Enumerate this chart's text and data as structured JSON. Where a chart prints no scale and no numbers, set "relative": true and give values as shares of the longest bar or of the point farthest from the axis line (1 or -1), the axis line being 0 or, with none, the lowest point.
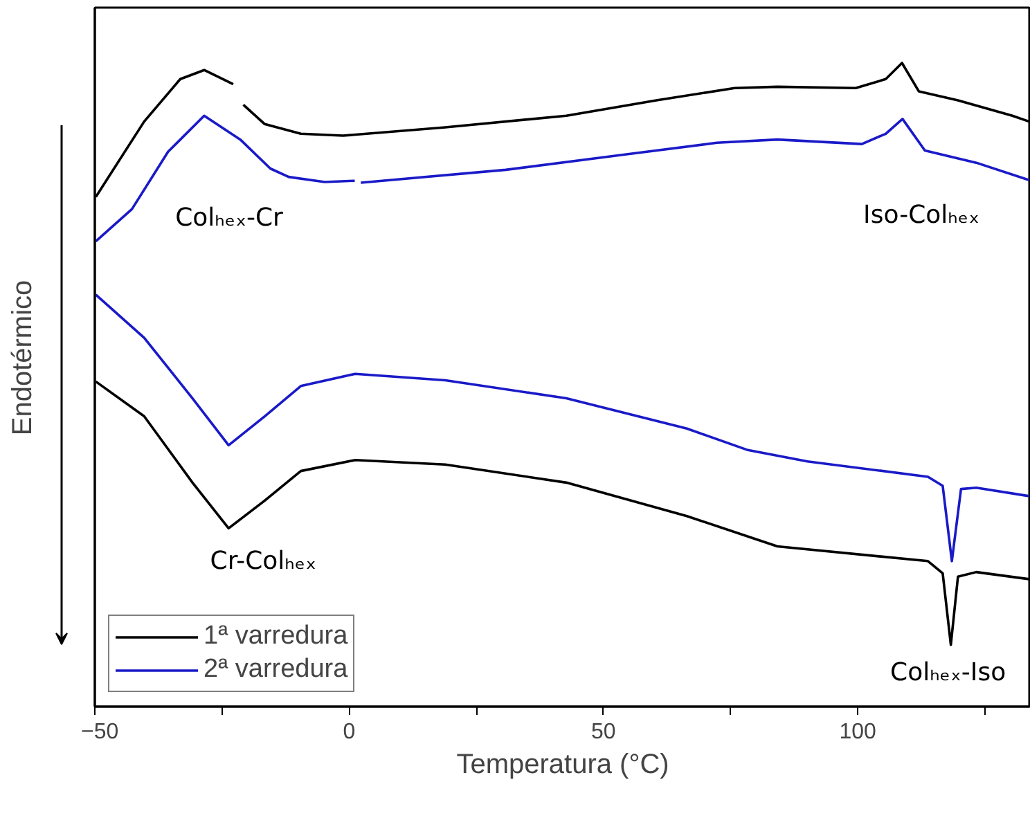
{
  "chart_data": {
    "type": "line",
    "relative": true,
    "xlabel": "Temperatura (°C)",
    "ylabel": "Endotérmico",
    "xlim": [
      -50,
      134
    ],
    "xticks": [
      -50,
      {
        "value": -25,
        "label": null
      },
      0,
      {
        "value": 25,
        "label": null
      },
      50,
      {
        "value": 75,
        "label": null
      },
      100,
      {
        "value": 125,
        "label": null
      }
    ],
    "grid": false,
    "legend": "bottom left",
    "marker": "none",
    "line_style": "solid",
    "series": [
      {
        "name": "1ª varredura",
        "color": "#000000",
        "x": [
          -49.8,
          -40.3,
          -33.2,
          -28.5,
          -22.8,
          -21.8,
          -20.8,
          -16.6,
          -9.5,
          -1.2,
          18.9,
          42.7,
          60.4,
          75.8,
          84.2,
          99.6,
          105.5,
          108.7,
          112.0,
          119.7,
          130.4,
          133.7
        ],
        "values": [
          0.792,
          0.909,
          0.975,
          0.989,
          0.967,
          null,
          0.935,
          0.905,
          0.89,
          0.887,
          0.9,
          0.918,
          0.942,
          0.961,
          0.963,
          0.961,
          0.975,
          1,
          0.956,
          0.942,
          0.918,
          0.909
        ]
      },
      {
        "name": "2ª varredura",
        "color": "#1a1ac8",
        "x": [
          -49.8,
          -42.7,
          -35.6,
          -28.5,
          -21.4,
          -15.5,
          -11.9,
          -4.8,
          1.1,
          1.7,
          2.3,
          30.8,
          54.5,
          72.3,
          84.2,
          100.8,
          105.5,
          108.8,
          113.2,
          123.3,
          133.7
        ],
        "values": [
          0.723,
          0.773,
          0.862,
          0.918,
          0.881,
          0.836,
          0.823,
          0.815,
          0.817,
          null,
          0.814,
          0.834,
          0.858,
          0.876,
          0.881,
          0.874,
          0.89,
          0.913,
          0.864,
          0.845,
          0.818
        ]
      },
      {
        "color": "#1a1ac8",
        "x": [
          -49.8,
          -40.3,
          -30.8,
          -23.7,
          -16.6,
          -9.5,
          1.2,
          18.9,
          42.7,
          66.4,
          78.2,
          90.1,
          113.8,
          116.7,
          118.5,
          120.3,
          123.3,
          133.7
        ],
        "values": [
          0.64,
          0.573,
          0.479,
          0.406,
          0.451,
          0.498,
          0.517,
          0.507,
          0.479,
          0.432,
          0.399,
          0.381,
          0.357,
          0.343,
          0.226,
          0.338,
          0.34,
          0.327
        ]
      },
      {
        "color": "#000000",
        "x": [
          -49.8,
          -40.3,
          -30.8,
          -23.7,
          -16.6,
          -9.5,
          1.2,
          18.9,
          42.7,
          66.4,
          84.2,
          113.8,
          116.7,
          118.3,
          119.7,
          123.3,
          133.7
        ],
        "values": [
          0.505,
          0.451,
          0.348,
          0.277,
          0.32,
          0.366,
          0.383,
          0.376,
          0.348,
          0.296,
          0.249,
          0.226,
          0.207,
          0.096,
          0.202,
          0.209,
          0.198
        ]
      }
    ],
    "annotations": [
      "Colₕₑₓ-Cr",
      "Iso-Colₕₑₓ",
      {
        "text": "Cr-Colₕₑₓ",
        "x": -23.7,
        "y": 0.277
      },
      {
        "text": "Colₕₑₓ-Iso",
        "x": 118.3,
        "y": 0.096
      }
    ]
  }
}
